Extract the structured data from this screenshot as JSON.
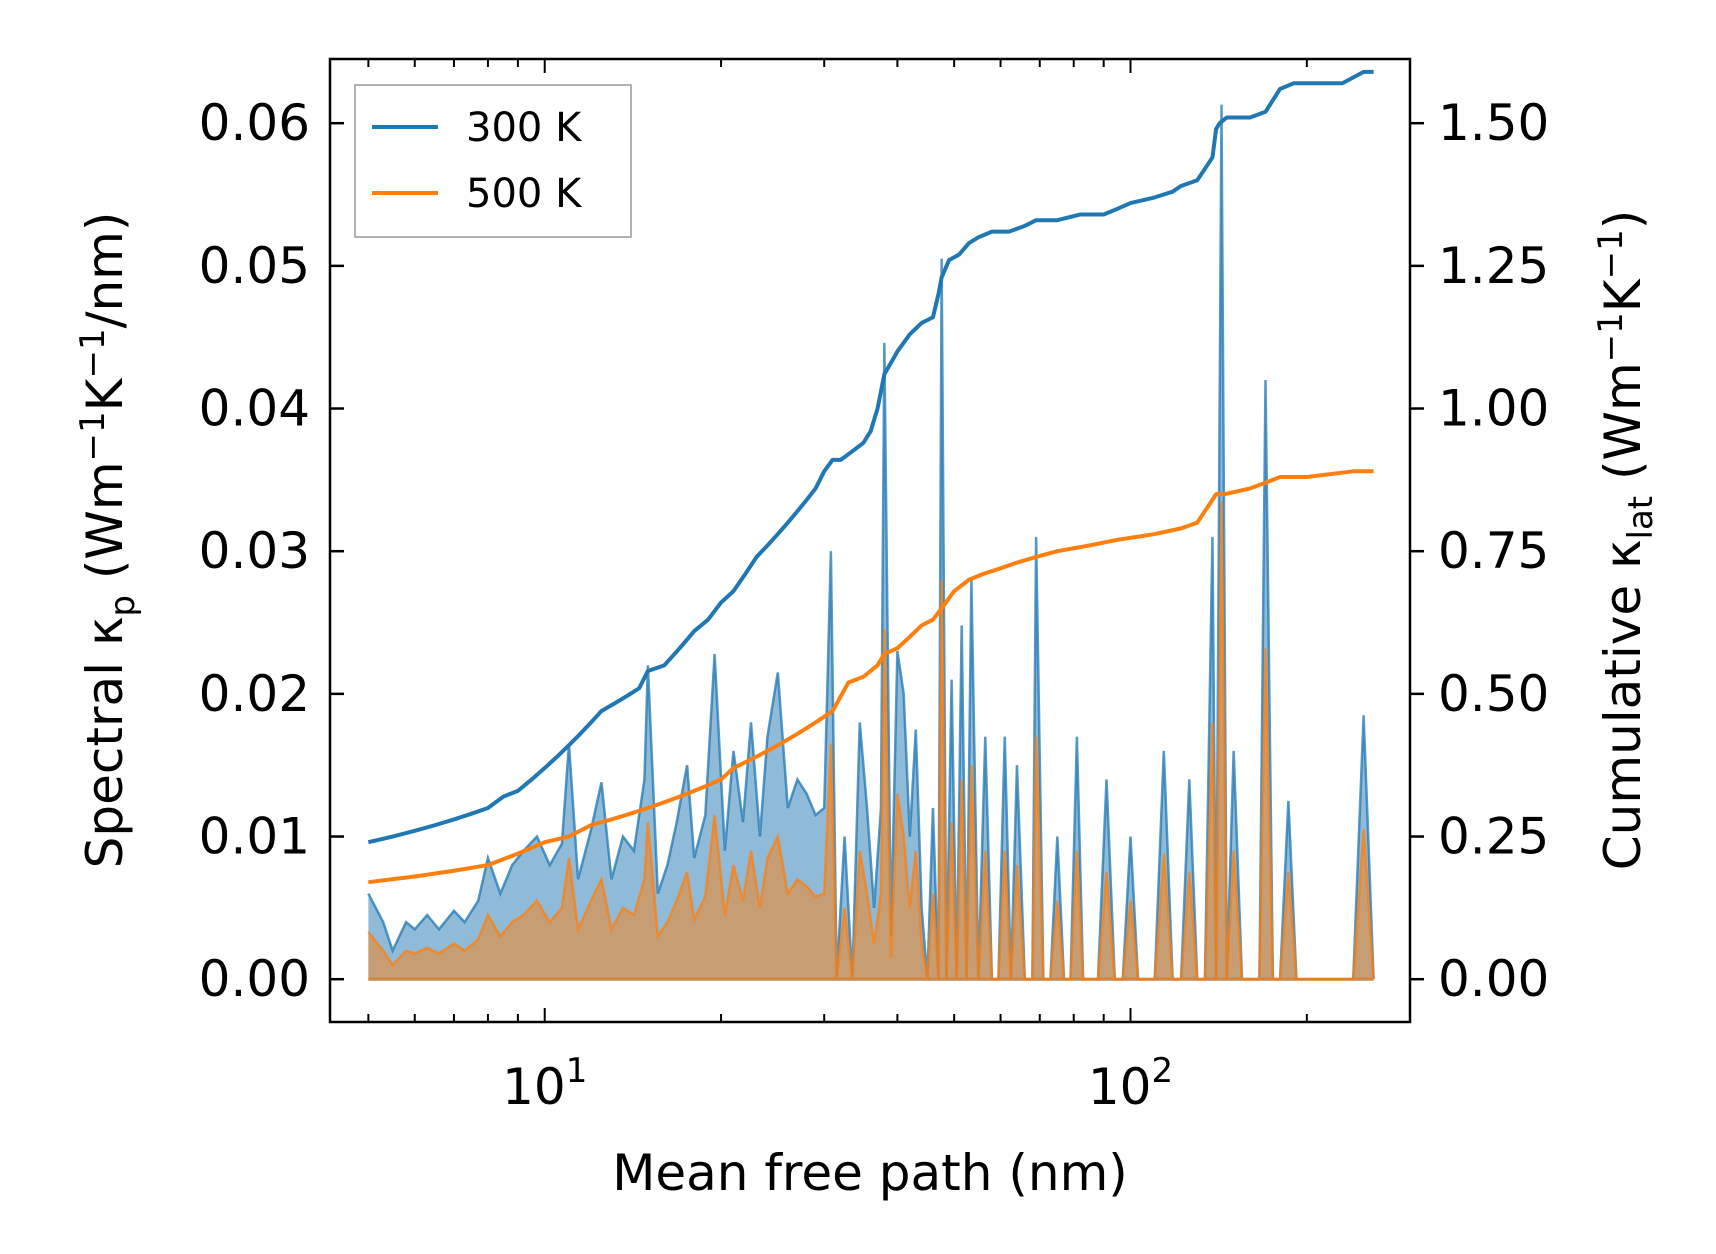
{
  "chart_data": {
    "type": "line",
    "title": "",
    "xlabel": "Mean free path (nm)",
    "xscale": "log",
    "xlim": [
      4.3,
      300
    ],
    "x_ticks": [
      {
        "value": 10,
        "base": "10",
        "exp": "1"
      },
      {
        "value": 100,
        "base": "10",
        "exp": "2"
      }
    ],
    "ylabel_left": {
      "pre": "Spectral κ",
      "sub": "p",
      "mid": " (Wm",
      "sup1": "−1",
      "mid2": "K",
      "sup2": "−1",
      "post": "/nm)"
    },
    "ylabel_right": {
      "pre": "Cumulative κ",
      "sub": "lat",
      "mid": " (Wm",
      "sup1": "−1",
      "mid2": "K",
      "sup2": "−1",
      "post": ")"
    },
    "ylim_left": [
      -0.003,
      0.0645
    ],
    "ylim_right": [
      -0.075,
      1.6125
    ],
    "y_ticks_left": [
      "0.00",
      "0.01",
      "0.02",
      "0.03",
      "0.04",
      "0.05",
      "0.06"
    ],
    "y_tick_values_left": [
      0,
      0.01,
      0.02,
      0.03,
      0.04,
      0.05,
      0.06
    ],
    "y_ticks_right": [
      "0.00",
      "0.25",
      "0.50",
      "0.75",
      "1.00",
      "1.25",
      "1.50"
    ],
    "y_tick_values_right": [
      0,
      0.25,
      0.5,
      0.75,
      1.0,
      1.25,
      1.5
    ],
    "legend": {
      "location": "upper-left",
      "entries": [
        "300 K",
        "500 K"
      ]
    },
    "colors": {
      "300K": "#1f77b4",
      "500K": "#ff7f0e"
    },
    "series": [
      {
        "name": "300 K spectral",
        "axis": "left",
        "kind": "filled",
        "color": "#1f77b4",
        "x": [
          5.0,
          5.3,
          5.5,
          5.8,
          6.0,
          6.3,
          6.6,
          7.0,
          7.3,
          7.7,
          8.0,
          8.4,
          8.8,
          9.2,
          9.7,
          10.2,
          10.7,
          11.0,
          11.4,
          12.0,
          12.5,
          13.0,
          13.6,
          14.2,
          14.8,
          15.0,
          15.6,
          16.2,
          16.8,
          17.5,
          18.0,
          18.8,
          19.5,
          20.3,
          21.0,
          21.8,
          22.5,
          23.3,
          24.0,
          25.0,
          26.0,
          27.0,
          28.0,
          29.0,
          30.0,
          30.8,
          31.5,
          32.5,
          33.5,
          34.5,
          35.5,
          36.5,
          37.5,
          38.0,
          39.0,
          40.0,
          41.0,
          42.0,
          43.0,
          44.0,
          45.0,
          46.0,
          47.0,
          47.6,
          48.5,
          49.5,
          50.5,
          51.5,
          52.5,
          53.5,
          55.0,
          56.5,
          58.0,
          59.5,
          61.0,
          62.5,
          64.0,
          66.0,
          68.0,
          69.0,
          71.0,
          73.0,
          75.0,
          77.0,
          79.0,
          81.0,
          83.0,
          85.0,
          88.0,
          91.0,
          94.0,
          97.0,
          100.0,
          103.0,
          106.0,
          110.0,
          114.0,
          118.0,
          122.0,
          126.0,
          130.0,
          134.0,
          138.0,
          140.0,
          143.0,
          146.0,
          150.0,
          155.0,
          160.0,
          166.0,
          170.0,
          175.0,
          180.0,
          186.0,
          192.0,
          200.0,
          210.0,
          220.0,
          230.0,
          240.0,
          250.0,
          260.0
        ],
        "y": [
          0.006,
          0.004,
          0.002,
          0.004,
          0.0035,
          0.0045,
          0.0035,
          0.0048,
          0.004,
          0.0055,
          0.0085,
          0.006,
          0.008,
          0.009,
          0.01,
          0.008,
          0.0095,
          0.0165,
          0.007,
          0.0105,
          0.0138,
          0.007,
          0.01,
          0.009,
          0.014,
          0.022,
          0.006,
          0.008,
          0.011,
          0.015,
          0.0085,
          0.0115,
          0.0228,
          0.009,
          0.016,
          0.011,
          0.018,
          0.01,
          0.017,
          0.0215,
          0.012,
          0.014,
          0.013,
          0.0115,
          0.012,
          0.03,
          0.0,
          0.01,
          0.0,
          0.018,
          0.012,
          0.005,
          0.012,
          0.0446,
          0.003,
          0.023,
          0.02,
          0.01,
          0.0175,
          0.005,
          0.0,
          0.012,
          0.0,
          0.0505,
          0.0,
          0.021,
          0.0,
          0.0248,
          0.0,
          0.028,
          0.0,
          0.017,
          0.0,
          0.0,
          0.017,
          0.0,
          0.015,
          0.0,
          0.0,
          0.031,
          0.0,
          0.0,
          0.01,
          0.0,
          0.0,
          0.017,
          0.0,
          0.0,
          0.0,
          0.014,
          0.0,
          0.0,
          0.01,
          0.0,
          0.0,
          0.0,
          0.016,
          0.0,
          0.0,
          0.014,
          0.0,
          0.0,
          0.031,
          0.0,
          0.0613,
          0.0,
          0.016,
          0.0,
          0.0,
          0.0,
          0.042,
          0.0,
          0.0,
          0.0125,
          0.0,
          0.0,
          0.0,
          0.0,
          0.0,
          0.0,
          0.0185,
          0.0
        ]
      },
      {
        "name": "500 K spectral",
        "axis": "left",
        "kind": "filled",
        "color": "#ff7f0e",
        "x": [
          5.0,
          5.3,
          5.5,
          5.8,
          6.0,
          6.3,
          6.6,
          7.0,
          7.3,
          7.7,
          8.0,
          8.4,
          8.8,
          9.2,
          9.7,
          10.2,
          10.7,
          11.0,
          11.4,
          12.0,
          12.5,
          13.0,
          13.6,
          14.2,
          14.8,
          15.0,
          15.6,
          16.2,
          16.8,
          17.5,
          18.0,
          18.8,
          19.5,
          20.3,
          21.0,
          21.8,
          22.5,
          23.3,
          24.0,
          25.0,
          26.0,
          27.0,
          28.0,
          29.0,
          30.0,
          30.8,
          31.5,
          32.5,
          33.5,
          34.5,
          35.5,
          36.5,
          37.5,
          38.0,
          39.0,
          40.0,
          41.0,
          42.0,
          43.0,
          44.0,
          45.0,
          46.0,
          47.0,
          47.6,
          48.5,
          49.5,
          50.5,
          51.5,
          52.5,
          53.5,
          55.0,
          56.5,
          58.0,
          59.5,
          61.0,
          62.5,
          64.0,
          66.0,
          68.0,
          69.0,
          71.0,
          73.0,
          75.0,
          77.0,
          79.0,
          81.0,
          83.0,
          85.0,
          88.0,
          91.0,
          94.0,
          97.0,
          100.0,
          103.0,
          106.0,
          110.0,
          114.0,
          118.0,
          122.0,
          126.0,
          130.0,
          134.0,
          138.0,
          140.0,
          143.0,
          146.0,
          150.0,
          155.0,
          160.0,
          166.0,
          170.0,
          175.0,
          180.0,
          186.0,
          192.0,
          200.0,
          210.0,
          220.0,
          230.0,
          240.0,
          250.0,
          260.0
        ],
        "y": [
          0.0033,
          0.002,
          0.001,
          0.002,
          0.0018,
          0.0022,
          0.0018,
          0.0025,
          0.002,
          0.0028,
          0.0045,
          0.003,
          0.004,
          0.0045,
          0.0055,
          0.004,
          0.005,
          0.0085,
          0.0035,
          0.0055,
          0.007,
          0.0035,
          0.005,
          0.0045,
          0.007,
          0.011,
          0.003,
          0.004,
          0.0055,
          0.0075,
          0.0042,
          0.0058,
          0.0115,
          0.0045,
          0.008,
          0.0055,
          0.009,
          0.005,
          0.0085,
          0.01,
          0.006,
          0.007,
          0.0065,
          0.0058,
          0.006,
          0.0165,
          0.0,
          0.005,
          0.0,
          0.009,
          0.006,
          0.0025,
          0.006,
          0.0245,
          0.0015,
          0.013,
          0.01,
          0.005,
          0.009,
          0.0025,
          0.0,
          0.006,
          0.0,
          0.028,
          0.0,
          0.011,
          0.0,
          0.014,
          0.0,
          0.015,
          0.0,
          0.009,
          0.0,
          0.0,
          0.009,
          0.0,
          0.008,
          0.0,
          0.0,
          0.017,
          0.0,
          0.0,
          0.0055,
          0.0,
          0.0,
          0.009,
          0.0,
          0.0,
          0.0,
          0.0075,
          0.0,
          0.0,
          0.0055,
          0.0,
          0.0,
          0.0,
          0.0088,
          0.0,
          0.0,
          0.0075,
          0.0,
          0.0,
          0.018,
          0.0,
          0.0335,
          0.0,
          0.009,
          0.0,
          0.0,
          0.0,
          0.0232,
          0.0,
          0.0,
          0.0075,
          0.0,
          0.0,
          0.0,
          0.0,
          0.0,
          0.0,
          0.0105,
          0.0
        ]
      },
      {
        "name": "300 K",
        "axis": "right",
        "kind": "line",
        "color": "#1f77b4",
        "x": [
          5.0,
          5.5,
          6.0,
          6.5,
          7.0,
          7.5,
          8.0,
          8.5,
          9.0,
          9.5,
          10.0,
          10.5,
          11.0,
          11.5,
          12.0,
          12.5,
          13.0,
          13.5,
          14.0,
          14.5,
          15.0,
          16.0,
          17.0,
          18.0,
          19.0,
          20.0,
          21.0,
          22.0,
          23.0,
          24.0,
          25.0,
          26.0,
          27.0,
          28.0,
          29.0,
          30.0,
          31.0,
          32.0,
          33.0,
          34.0,
          35.0,
          36.0,
          37.0,
          38.0,
          39.0,
          40.0,
          42.0,
          44.0,
          46.0,
          47.0,
          47.6,
          49.0,
          51.0,
          53.0,
          55.0,
          58.0,
          62.0,
          66.0,
          69.0,
          75.0,
          82.0,
          90.0,
          95.0,
          100.0,
          110.0,
          118.0,
          122.0,
          130.0,
          138.0,
          140.0,
          142.0,
          146.0,
          152.0,
          160.0,
          170.0,
          180.0,
          190.0,
          210.0,
          230.0,
          250.0,
          260.0
        ],
        "y": [
          0.24,
          0.25,
          0.26,
          0.27,
          0.28,
          0.29,
          0.3,
          0.32,
          0.33,
          0.35,
          0.37,
          0.39,
          0.41,
          0.43,
          0.45,
          0.47,
          0.48,
          0.49,
          0.5,
          0.51,
          0.54,
          0.55,
          0.58,
          0.61,
          0.63,
          0.66,
          0.68,
          0.71,
          0.74,
          0.76,
          0.78,
          0.8,
          0.82,
          0.84,
          0.86,
          0.89,
          0.91,
          0.91,
          0.92,
          0.93,
          0.94,
          0.96,
          1.0,
          1.06,
          1.08,
          1.1,
          1.13,
          1.15,
          1.16,
          1.2,
          1.23,
          1.26,
          1.27,
          1.29,
          1.3,
          1.31,
          1.31,
          1.32,
          1.33,
          1.33,
          1.34,
          1.34,
          1.35,
          1.36,
          1.37,
          1.38,
          1.39,
          1.4,
          1.44,
          1.49,
          1.5,
          1.51,
          1.51,
          1.51,
          1.52,
          1.56,
          1.57,
          1.57,
          1.57,
          1.59,
          1.59
        ]
      },
      {
        "name": "500 K",
        "axis": "right",
        "kind": "line",
        "color": "#ff7f0e",
        "x": [
          5.0,
          6.0,
          7.0,
          8.0,
          9.0,
          10.0,
          11.0,
          12.0,
          13.0,
          14.0,
          15.0,
          16.0,
          17.0,
          18.0,
          19.0,
          20.0,
          21.0,
          22.0,
          23.0,
          24.0,
          25.0,
          26.0,
          27.0,
          28.0,
          29.0,
          30.0,
          31.0,
          33.0,
          35.0,
          37.0,
          38.0,
          40.0,
          42.0,
          44.0,
          46.0,
          47.6,
          50.0,
          53.0,
          56.0,
          60.0,
          64.0,
          69.0,
          75.0,
          85.0,
          95.0,
          110.0,
          122.0,
          130.0,
          138.0,
          140.0,
          145.0,
          160.0,
          170.0,
          180.0,
          200.0,
          240.0,
          260.0
        ],
        "y": [
          0.17,
          0.18,
          0.19,
          0.2,
          0.22,
          0.24,
          0.25,
          0.27,
          0.28,
          0.29,
          0.3,
          0.31,
          0.32,
          0.33,
          0.34,
          0.35,
          0.37,
          0.38,
          0.39,
          0.4,
          0.41,
          0.42,
          0.43,
          0.44,
          0.45,
          0.46,
          0.47,
          0.52,
          0.53,
          0.55,
          0.57,
          0.58,
          0.6,
          0.62,
          0.63,
          0.65,
          0.68,
          0.7,
          0.71,
          0.72,
          0.73,
          0.74,
          0.75,
          0.76,
          0.77,
          0.78,
          0.79,
          0.8,
          0.84,
          0.85,
          0.85,
          0.86,
          0.87,
          0.88,
          0.88,
          0.89,
          0.89
        ]
      }
    ]
  }
}
